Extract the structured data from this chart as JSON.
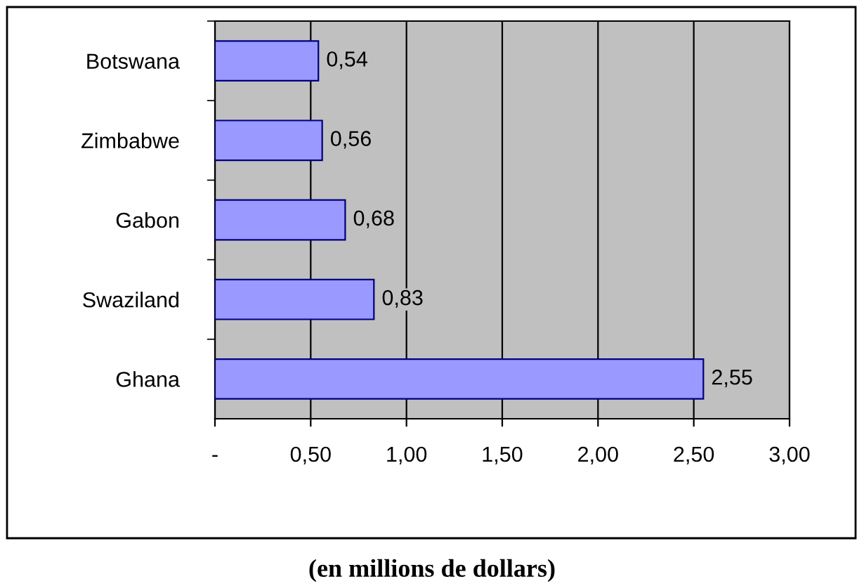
{
  "chart_data": {
    "type": "bar",
    "orientation": "horizontal",
    "xlabel": "(en millions de dollars)",
    "categories": [
      "Botswana",
      "Zimbabwe",
      "Gabon",
      "Swaziland",
      "Ghana"
    ],
    "values": [
      0.54,
      0.56,
      0.68,
      0.83,
      2.55
    ],
    "value_labels": [
      "0,54",
      "0,56",
      "0,68",
      "0,83",
      "2,55"
    ],
    "color": "#9999ff",
    "xlim": [
      0,
      3
    ],
    "xticks": [
      {
        "value": 0,
        "label": "-"
      },
      {
        "value": 0.5,
        "label": "0,50"
      },
      {
        "value": 1,
        "label": "1,00"
      },
      {
        "value": 1.5,
        "label": "1,50"
      },
      {
        "value": 2,
        "label": "2,00"
      },
      {
        "value": 2.5,
        "label": "2,50"
      },
      {
        "value": 3,
        "label": "3,00"
      }
    ],
    "grid": "x"
  }
}
